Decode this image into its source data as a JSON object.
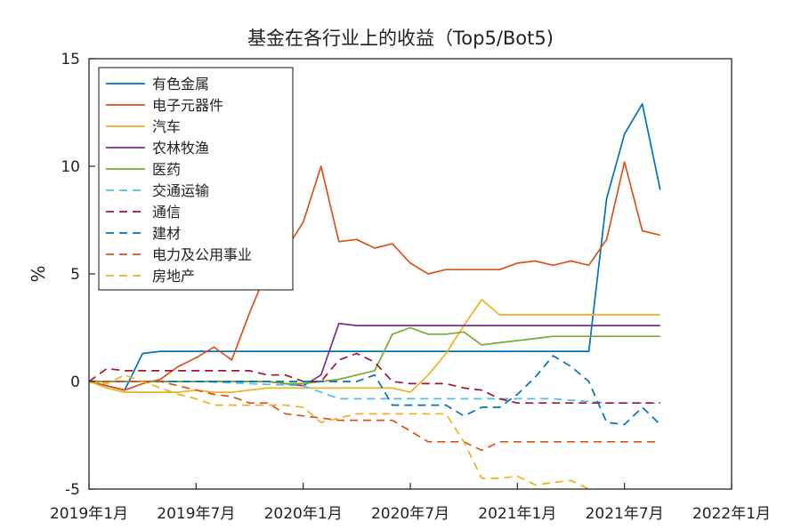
{
  "chart_data": {
    "type": "line",
    "title": "基金在各行业上的收益（Top5/Bot5)",
    "xlabel": "",
    "ylabel": "%",
    "ylim": [
      -5,
      15
    ],
    "yticks": [
      -5,
      0,
      5,
      10,
      15
    ],
    "xlim": [
      "2019-01",
      "2022-01"
    ],
    "xticks": [
      "2019-01",
      "2019-07",
      "2020-01",
      "2020-07",
      "2021-01",
      "2021-07",
      "2022-01"
    ],
    "xtick_labels": [
      "2019年1月",
      "2019年7月",
      "2020年1月",
      "2020年7月",
      "2021年1月",
      "2021年7月",
      "2022年1月"
    ],
    "legend_position": "top-left",
    "grid": false,
    "series": [
      {
        "name": "有色金属",
        "color": "#0072BD",
        "style": "solid",
        "x": [
          "2019-01",
          "2019-03",
          "2019-04",
          "2019-05",
          "2019-06",
          "2021-05",
          "2021-06",
          "2021-07",
          "2021-08",
          "2021-09"
        ],
        "y": [
          0,
          -0.4,
          1.3,
          1.4,
          1.4,
          1.4,
          8.5,
          11.5,
          12.9,
          8.9
        ]
      },
      {
        "name": "电子元器件",
        "color": "#D95319",
        "style": "solid",
        "x": [
          "2019-01",
          "2019-02",
          "2019-03",
          "2019-04",
          "2019-05",
          "2019-06",
          "2019-07",
          "2019-08",
          "2019-09",
          "2019-10",
          "2019-11",
          "2019-12",
          "2020-01",
          "2020-02",
          "2020-03",
          "2020-04",
          "2020-05",
          "2020-06",
          "2020-07",
          "2020-08",
          "2020-09",
          "2020-10",
          "2020-11",
          "2020-12",
          "2021-01",
          "2021-02",
          "2021-03",
          "2021-04",
          "2021-05",
          "2021-06",
          "2021-07",
          "2021-08",
          "2021-09"
        ],
        "y": [
          0,
          -0.2,
          -0.4,
          -0.1,
          0.1,
          0.7,
          1.1,
          1.6,
          1.0,
          3.2,
          5.2,
          6.1,
          7.4,
          10.0,
          6.5,
          6.6,
          6.2,
          6.4,
          5.5,
          5.0,
          5.2,
          5.2,
          5.2,
          5.2,
          5.5,
          5.6,
          5.4,
          5.6,
          5.4,
          6.6,
          10.2,
          7.0,
          6.8
        ]
      },
      {
        "name": "汽车",
        "color": "#EDB120",
        "style": "solid",
        "x": [
          "2019-01",
          "2019-02",
          "2019-03",
          "2019-04",
          "2019-05",
          "2019-06",
          "2019-07",
          "2019-08",
          "2019-09",
          "2019-10",
          "2019-11",
          "2019-12",
          "2020-01",
          "2020-02",
          "2020-03",
          "2020-04",
          "2020-05",
          "2020-06",
          "2020-07",
          "2020-08",
          "2020-09",
          "2020-10",
          "2020-11",
          "2020-12",
          "2021-01",
          "2021-02",
          "2021-03",
          "2021-04",
          "2021-05",
          "2021-06",
          "2021-07",
          "2021-08",
          "2021-09"
        ],
        "y": [
          0,
          -0.3,
          -0.5,
          -0.5,
          -0.5,
          -0.5,
          -0.4,
          -0.5,
          -0.5,
          -0.4,
          -0.3,
          -0.3,
          -0.3,
          -0.3,
          -0.3,
          -0.3,
          -0.3,
          -0.3,
          -0.5,
          0.3,
          1.3,
          2.6,
          3.8,
          3.1,
          3.1,
          3.1,
          3.1,
          3.1,
          3.1,
          3.1,
          3.1,
          3.1,
          3.1
        ]
      },
      {
        "name": "农林牧渔",
        "color": "#7E2F8E",
        "style": "solid",
        "x": [
          "2019-01",
          "2019-02",
          "2019-03",
          "2019-04",
          "2019-05",
          "2019-06",
          "2019-07",
          "2019-08",
          "2019-09",
          "2019-10",
          "2019-11",
          "2019-12",
          "2020-01",
          "2020-02",
          "2020-03",
          "2020-04",
          "2020-05",
          "2020-06",
          "2021-09"
        ],
        "y": [
          0,
          0,
          0,
          0,
          0,
          0,
          0,
          0,
          0,
          0,
          0,
          -0.1,
          -0.2,
          0.3,
          2.7,
          2.6,
          2.6,
          2.6,
          2.6
        ]
      },
      {
        "name": "医药",
        "color": "#77AC30",
        "style": "solid",
        "x": [
          "2019-01",
          "2019-02",
          "2019-03",
          "2019-04",
          "2019-05",
          "2019-06",
          "2019-07",
          "2019-08",
          "2019-09",
          "2019-10",
          "2019-11",
          "2019-12",
          "2020-01",
          "2020-02",
          "2020-03",
          "2020-04",
          "2020-05",
          "2020-06",
          "2020-07",
          "2020-08",
          "2020-09",
          "2020-10",
          "2020-11",
          "2020-12",
          "2021-01",
          "2021-02",
          "2021-03",
          "2021-04",
          "2021-09"
        ],
        "y": [
          0,
          0,
          0,
          0,
          0,
          0,
          0,
          0,
          0,
          0,
          0,
          -0.1,
          -0.1,
          0,
          0.1,
          0.3,
          0.5,
          2.2,
          2.5,
          2.2,
          2.2,
          2.3,
          1.7,
          1.8,
          1.9,
          2.0,
          2.1,
          2.1,
          2.1
        ]
      },
      {
        "name": "交通运输",
        "color": "#4DBEEE",
        "style": "dashed",
        "x": [
          "2019-01",
          "2019-07",
          "2020-01",
          "2020-02",
          "2020-03",
          "2020-04",
          "2020-05",
          "2020-06",
          "2021-01",
          "2021-02",
          "2021-03",
          "2021-06",
          "2021-09"
        ],
        "y": [
          0,
          0,
          -0.2,
          -0.5,
          -0.8,
          -0.8,
          -0.8,
          -0.8,
          -0.8,
          -0.8,
          -0.8,
          -1.0,
          -1.0
        ]
      },
      {
        "name": "通信",
        "color": "#A2142F",
        "style": "dashed",
        "x": [
          "2019-01",
          "2019-02",
          "2019-03",
          "2019-04",
          "2019-05",
          "2019-06",
          "2019-07",
          "2019-08",
          "2019-09",
          "2019-10",
          "2019-11",
          "2019-12",
          "2020-01",
          "2020-02",
          "2020-03",
          "2020-04",
          "2020-05",
          "2020-06",
          "2020-07",
          "2020-08",
          "2020-09",
          "2020-10",
          "2020-11",
          "2020-12",
          "2021-01",
          "2021-02",
          "2021-03",
          "2021-04",
          "2021-05",
          "2021-06",
          "2021-07",
          "2021-08",
          "2021-09"
        ],
        "y": [
          0,
          0.6,
          0.5,
          0.5,
          0.5,
          0.5,
          0.5,
          0.5,
          0.5,
          0.5,
          0.3,
          0.3,
          0,
          0,
          1.0,
          1.3,
          0.9,
          0,
          -0.1,
          -0.1,
          -0.1,
          -0.3,
          -0.4,
          -0.8,
          -1.0,
          -1.0,
          -1.0,
          -1.0,
          -1.0,
          -1.0,
          -1.0,
          -1.0,
          -1.0
        ]
      },
      {
        "name": "建材",
        "color": "#0072BD",
        "style": "dashed",
        "x": [
          "2019-01",
          "2019-07",
          "2020-01",
          "2020-02",
          "2020-03",
          "2020-04",
          "2020-05",
          "2020-06",
          "2020-07",
          "2020-08",
          "2020-09",
          "2020-10",
          "2020-11",
          "2020-12",
          "2021-01",
          "2021-02",
          "2021-03",
          "2021-04",
          "2021-05",
          "2021-06",
          "2021-07",
          "2021-08",
          "2021-09"
        ],
        "y": [
          0,
          0,
          0,
          0,
          0,
          0,
          0.3,
          -1.1,
          -1.1,
          -1.1,
          -1.1,
          -1.6,
          -1.2,
          -1.2,
          -0.6,
          0.2,
          1.2,
          0.7,
          0,
          -1.9,
          -2.0,
          -1.2,
          -2.0
        ]
      },
      {
        "name": "电力及公用事业",
        "color": "#D95319",
        "style": "dashed",
        "x": [
          "2019-01",
          "2019-02",
          "2019-03",
          "2019-04",
          "2019-05",
          "2019-06",
          "2019-07",
          "2019-08",
          "2019-09",
          "2019-10",
          "2019-11",
          "2019-12",
          "2020-01",
          "2020-02",
          "2020-03",
          "2020-04",
          "2020-05",
          "2020-06",
          "2020-07",
          "2020-08",
          "2020-09",
          "2020-10",
          "2020-11",
          "2020-12",
          "2021-09"
        ],
        "y": [
          0,
          0,
          0,
          0,
          0,
          -0.2,
          -0.4,
          -0.6,
          -0.7,
          -1.0,
          -1.0,
          -1.5,
          -1.6,
          -1.7,
          -1.8,
          -1.8,
          -1.8,
          -1.8,
          -2.3,
          -2.8,
          -2.8,
          -2.8,
          -3.2,
          -2.8,
          -2.8
        ]
      },
      {
        "name": "房地产",
        "color": "#EDB120",
        "style": "dashed",
        "x": [
          "2019-01",
          "2019-02",
          "2019-03",
          "2019-04",
          "2019-05",
          "2019-06",
          "2019-07",
          "2019-08",
          "2019-09",
          "2019-10",
          "2019-11",
          "2019-12",
          "2020-01",
          "2020-02",
          "2020-03",
          "2020-04",
          "2020-05",
          "2020-06",
          "2020-07",
          "2020-08",
          "2020-09",
          "2020-10",
          "2020-11",
          "2020-12",
          "2021-01",
          "2021-02",
          "2021-03",
          "2021-04",
          "2021-05",
          "2021-06",
          "2021-07",
          "2021-08",
          "2021-09"
        ],
        "y": [
          0,
          -0.1,
          0.3,
          0,
          -0.3,
          -0.6,
          -0.8,
          -1.1,
          -1.1,
          -1.1,
          -1.1,
          -1.1,
          -1.2,
          -1.9,
          -1.7,
          -1.5,
          -1.5,
          -1.5,
          -1.5,
          -1.5,
          -1.5,
          -2.8,
          -4.5,
          -4.5,
          -4.4,
          -4.8,
          -4.7,
          -4.6,
          -5.0,
          -5.1,
          -5.1,
          -5.1,
          -5.1
        ]
      }
    ]
  }
}
